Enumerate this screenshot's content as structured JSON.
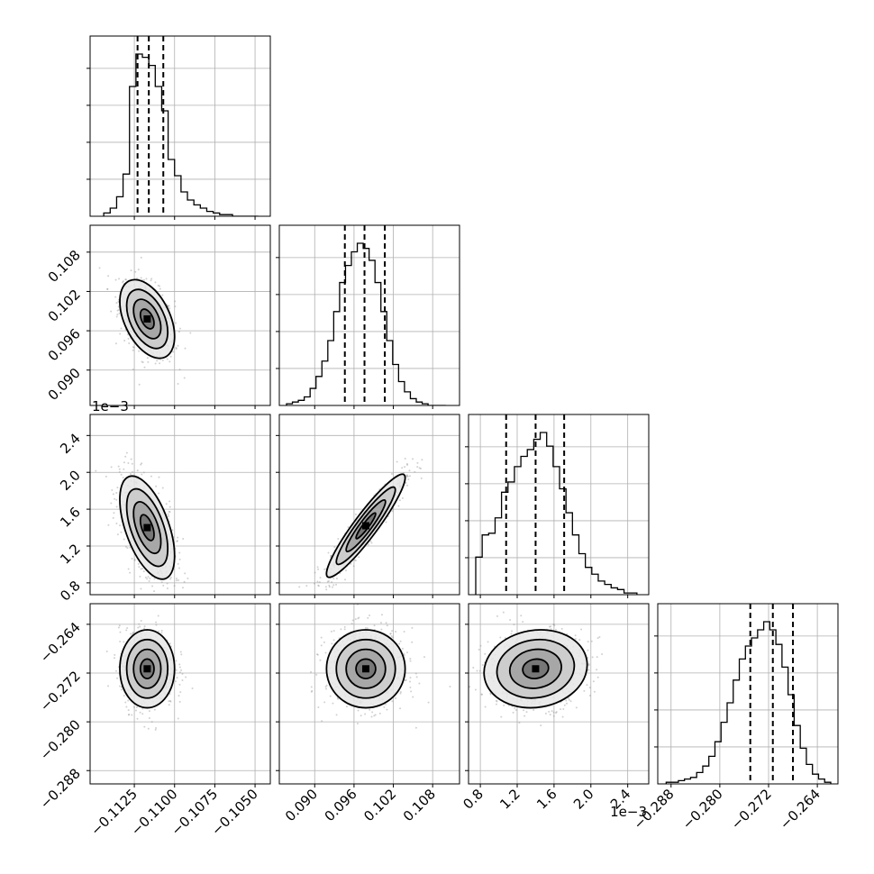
{
  "chart_data": {
    "type": "corner",
    "dimensions": [
      {
        "name": "",
        "range": [
          -0.1148,
          -0.1045
        ],
        "ticks": [
          -0.1125,
          -0.11,
          -0.1075,
          -0.105
        ],
        "tick_labels": [
          "−0.1125",
          "−0.1100",
          "−0.1075",
          "−0.1050"
        ],
        "quantiles": [
          -0.1123,
          -0.1116,
          -0.1107
        ],
        "hist_bins": [
          -0.1144,
          -0.114,
          -0.1136,
          -0.1132,
          -0.1128,
          -0.1124,
          -0.112,
          -0.1116,
          -0.1112,
          -0.1108,
          -0.1104,
          -0.11,
          -0.1096,
          -0.1092,
          -0.1088,
          -0.1084,
          -0.108,
          -0.1076,
          -0.1072,
          -0.1068,
          -0.1064,
          -0.106,
          -0.1056,
          -0.1052,
          -0.1048
        ],
        "hist_counts": [
          2,
          5,
          12,
          26,
          80,
          100,
          98,
          93,
          80,
          65,
          35,
          25,
          15,
          10,
          7,
          5,
          3,
          2,
          1,
          1,
          0,
          0,
          0,
          0
        ]
      },
      {
        "name": "",
        "range": [
          0.0857,
          0.111
        ],
        "ticks": [
          0.09,
          0.096,
          0.102,
          0.108
        ],
        "tick_labels": [
          "0.090",
          "0.096",
          "0.102",
          "0.108"
        ],
        "quantiles": [
          0.0946,
          0.0976,
          0.1007
        ],
        "hist_bins": [
          0.0857,
          0.0866,
          0.0875,
          0.0884,
          0.0893,
          0.0902,
          0.0911,
          0.092,
          0.0929,
          0.0938,
          0.0947,
          0.0956,
          0.0965,
          0.0974,
          0.0983,
          0.0992,
          0.1001,
          0.101,
          0.1019,
          0.1028,
          0.1037,
          0.1046,
          0.1055,
          0.1064,
          0.1073,
          0.1082,
          0.1091,
          0.11
        ],
        "hist_counts": [
          1,
          2,
          3,
          5,
          10,
          17,
          26,
          38,
          55,
          72,
          82,
          90,
          95,
          92,
          85,
          72,
          55,
          38,
          24,
          14,
          8,
          4,
          2,
          1,
          0,
          0,
          0
        ]
      },
      {
        "name": "",
        "exponent_label": "1e−3",
        "range": [
          0.00075,
          0.00255
        ],
        "ticks": [
          0.0008,
          0.0012,
          0.0016,
          0.002,
          0.0024
        ],
        "tick_labels": [
          "0.8",
          "1.2",
          "1.6",
          "2.0",
          "2.4"
        ],
        "quantiles": [
          0.00108,
          0.0014,
          0.00171
        ],
        "hist_bins": [
          0.00075,
          0.00082,
          0.00089,
          0.00096,
          0.00103,
          0.0011,
          0.00117,
          0.00124,
          0.00131,
          0.00138,
          0.00145,
          0.00152,
          0.00159,
          0.00166,
          0.00173,
          0.0018,
          0.00187,
          0.00194,
          0.00201,
          0.00208,
          0.00215,
          0.00222,
          0.00229,
          0.00236,
          0.00243,
          0.0025
        ],
        "hist_counts": [
          22,
          35,
          36,
          45,
          60,
          66,
          75,
          81,
          85,
          91,
          95,
          87,
          75,
          62,
          48,
          35,
          24,
          16,
          12,
          8,
          6,
          4,
          3,
          1,
          1
        ]
      },
      {
        "name": "",
        "range": [
          -0.289,
          -0.2618
        ],
        "ticks": [
          -0.288,
          -0.28,
          -0.272,
          -0.264
        ],
        "tick_labels": [
          "−0.288",
          "−0.280",
          "−0.272",
          "−0.264"
        ],
        "quantiles": [
          -0.275,
          -0.2713,
          -0.268
        ],
        "hist_bins": [
          -0.2888,
          -0.2878,
          -0.2868,
          -0.2858,
          -0.2848,
          -0.2838,
          -0.2828,
          -0.2818,
          -0.2808,
          -0.2798,
          -0.2788,
          -0.2778,
          -0.2768,
          -0.2758,
          -0.2748,
          -0.2738,
          -0.2728,
          -0.2718,
          -0.2708,
          -0.2698,
          -0.2688,
          -0.2678,
          -0.2668,
          -0.2658,
          -0.2648,
          -0.2638,
          -0.2628,
          -0.2618
        ],
        "hist_counts": [
          1,
          1,
          2,
          3,
          4,
          7,
          11,
          17,
          26,
          38,
          50,
          64,
          77,
          85,
          90,
          95,
          100,
          95,
          86,
          72,
          55,
          36,
          22,
          12,
          6,
          3,
          1
        ]
      }
    ],
    "pairs": [
      {
        "x": 0,
        "y": 1,
        "center": [
          -0.1117,
          0.0978
        ],
        "sigma": [
          0.00085,
          0.003
        ],
        "rho": -0.45
      },
      {
        "x": 0,
        "y": 2,
        "center": [
          -0.1117,
          0.0014
        ],
        "sigma": [
          0.00085,
          0.00028
        ],
        "rho": -0.55
      },
      {
        "x": 1,
        "y": 2,
        "center": [
          0.0978,
          0.00142
        ],
        "sigma": [
          0.003,
          0.00028
        ],
        "rho": 0.93
      },
      {
        "x": 0,
        "y": 3,
        "center": [
          -0.1117,
          -0.2713
        ],
        "sigma": [
          0.00085,
          0.0032
        ],
        "rho": 0.0
      },
      {
        "x": 1,
        "y": 3,
        "center": [
          0.0978,
          -0.2713
        ],
        "sigma": [
          0.003,
          0.0032
        ],
        "rho": 0.0
      },
      {
        "x": 2,
        "y": 3,
        "center": [
          0.0014,
          -0.2713
        ],
        "sigma": [
          0.00028,
          0.0032
        ],
        "rho": 0.1
      }
    ],
    "contour_levels_sigma": [
      0.5,
      1.0,
      1.5,
      2.0
    ],
    "grid": true,
    "quantile_style": "dashed"
  }
}
